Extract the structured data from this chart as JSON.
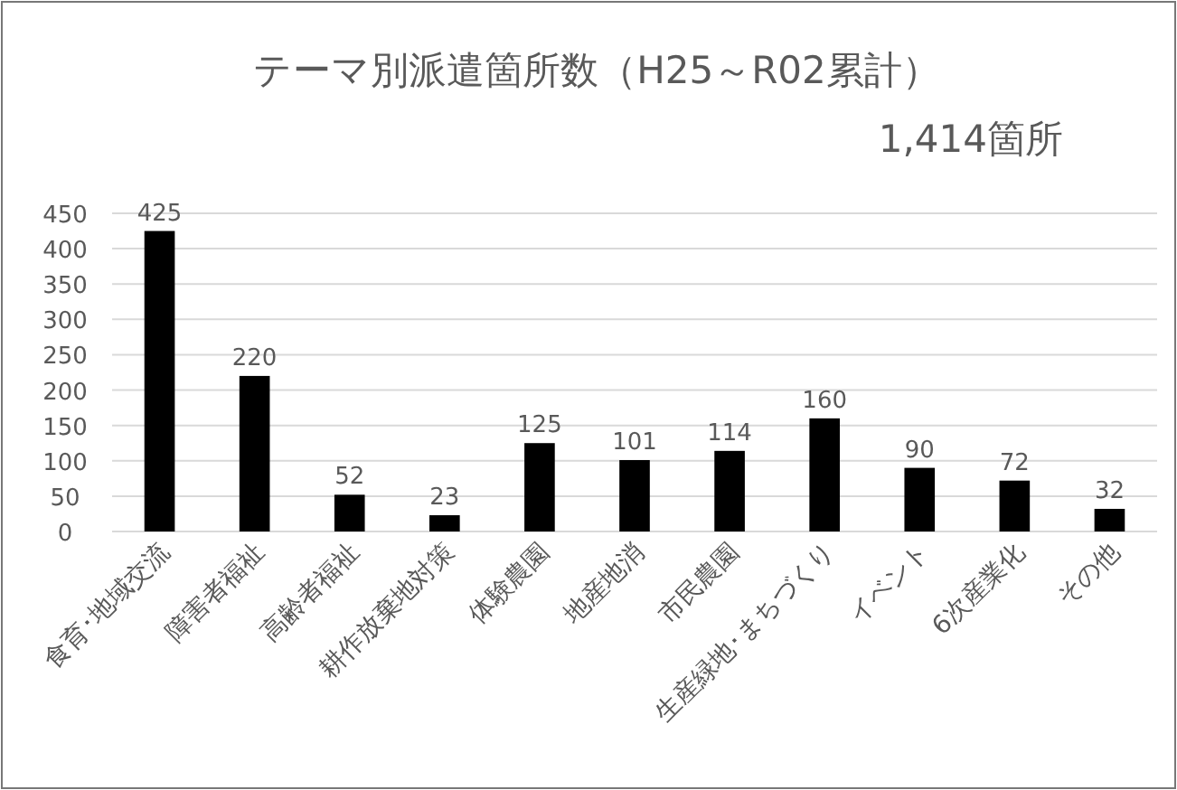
{
  "chart_data": {
    "type": "bar",
    "title": "テーマ別派遣箇所数（H25～R02累計）",
    "subtitle": "1,414箇所",
    "categories": [
      "食育･地域交流",
      "障害者福祉",
      "高齢者福祉",
      "耕作放棄地対策",
      "体験農園",
      "地産地消",
      "市民農園",
      "生産緑地･まちづくり",
      "イベント",
      "6次産業化",
      "その他"
    ],
    "values": [
      425,
      220,
      52,
      23,
      125,
      101,
      114,
      160,
      90,
      72,
      32
    ],
    "color": "#000000",
    "ylim": [
      0,
      450
    ],
    "yticks": [
      0,
      50,
      100,
      150,
      200,
      250,
      300,
      350,
      400,
      450
    ],
    "grid": "y",
    "data_labels": true
  }
}
